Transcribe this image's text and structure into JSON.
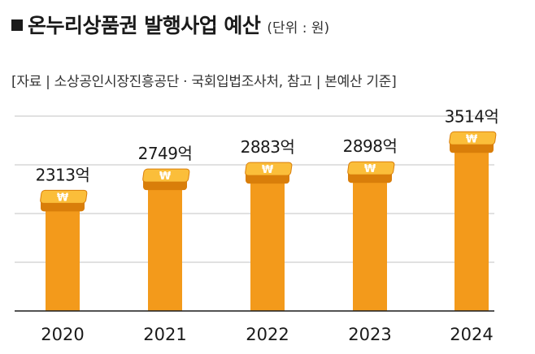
{
  "header": {
    "title": "온누리상품권 발행사업 예산",
    "unit": "(단위 : 원)",
    "source": "[자료 | 소상공인시장진흥공단 · 국회입법조사처, 참고 | 본예산 기준]"
  },
  "colors": {
    "bar": "#F39A1B",
    "coin_top": "#FBBE3A",
    "coin_edge": "#D97E0A",
    "grid": "#CFCFCF",
    "axis": "#1a1a1a",
    "text": "#1a1a1a"
  },
  "icons": {
    "bar_cap": "won-coin-stack-icon"
  },
  "chart_data": {
    "type": "bar",
    "categories": [
      "2020",
      "2021",
      "2022",
      "2023",
      "2024"
    ],
    "values": [
      2313,
      2749,
      2883,
      2898,
      3514
    ],
    "value_labels": [
      "2313억",
      "2749억",
      "2883억",
      "2898억",
      "3514억"
    ],
    "title": "온누리상품권 발행사업 예산",
    "xlabel": "",
    "ylabel": "",
    "ylim": [
      0,
      4000
    ],
    "grid": true,
    "legend": "none"
  }
}
